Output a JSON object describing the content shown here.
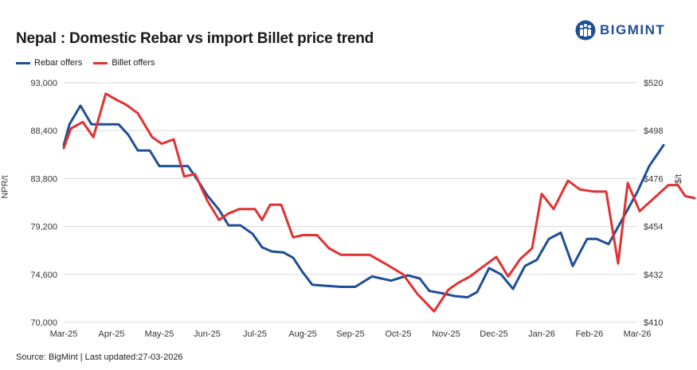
{
  "header": {
    "title": "Nepal : Domestic Rebar vs import Billet price trend"
  },
  "logo": {
    "text": "BIGMINT"
  },
  "source": "Source: BigMint | Last updated:27-03-2026",
  "colors": {
    "rebar": "#1f4e96",
    "billet": "#e03232",
    "grid": "#d9d9d9"
  },
  "chart_data": {
    "type": "line",
    "title": "Nepal : Domestic Rebar vs import Billet price trend",
    "legend_placement": "top-left",
    "grid": true,
    "ylabel": "NPR/t",
    "y2label": "$/t",
    "ylim": [
      70000,
      93000
    ],
    "y2lim": [
      410,
      520
    ],
    "yticks": [
      "93,000",
      "88,400",
      "83,800",
      "79,200",
      "74,600",
      "70,000"
    ],
    "y2ticks": [
      "$520",
      "$498",
      "$476",
      "$454",
      "$432",
      "$410"
    ],
    "xticks": [
      "Mar-25",
      "Apr-25",
      "May-25",
      "Jun-25",
      "Jul-25",
      "Aug-25",
      "Sep-25",
      "Oct-25",
      "Nov-25",
      "Dec-25",
      "Jan-26",
      "Feb-26",
      "Mar-26"
    ],
    "series": [
      {
        "name": "Rebar offers",
        "axis": "left",
        "points": [
          [
            0.0,
            87000
          ],
          [
            0.12,
            89000
          ],
          [
            0.35,
            90800
          ],
          [
            0.58,
            89000
          ],
          [
            0.85,
            89000
          ],
          [
            1.15,
            89000
          ],
          [
            1.35,
            88000
          ],
          [
            1.55,
            86500
          ],
          [
            1.8,
            86500
          ],
          [
            2.0,
            85000
          ],
          [
            2.3,
            85000
          ],
          [
            2.6,
            85000
          ],
          [
            2.85,
            83300
          ],
          [
            3.0,
            82200
          ],
          [
            3.25,
            80800
          ],
          [
            3.45,
            79300
          ],
          [
            3.7,
            79300
          ],
          [
            3.95,
            78500
          ],
          [
            4.15,
            77200
          ],
          [
            4.35,
            76800
          ],
          [
            4.6,
            76700
          ],
          [
            4.8,
            76200
          ],
          [
            5.0,
            74800
          ],
          [
            5.2,
            73600
          ],
          [
            5.5,
            73500
          ],
          [
            5.8,
            73400
          ],
          [
            6.1,
            73400
          ],
          [
            6.45,
            74400
          ],
          [
            6.85,
            74000
          ],
          [
            7.2,
            74500
          ],
          [
            7.45,
            74200
          ],
          [
            7.65,
            73000
          ],
          [
            7.9,
            72800
          ],
          [
            8.2,
            72500
          ],
          [
            8.45,
            72400
          ],
          [
            8.65,
            72900
          ],
          [
            8.9,
            75200
          ],
          [
            9.15,
            74600
          ],
          [
            9.4,
            73200
          ],
          [
            9.65,
            75400
          ],
          [
            9.9,
            76000
          ],
          [
            10.15,
            78000
          ],
          [
            10.4,
            78600
          ],
          [
            10.65,
            75400
          ],
          [
            10.95,
            78000
          ],
          [
            11.15,
            78000
          ],
          [
            11.4,
            77500
          ],
          [
            11.7,
            80000
          ],
          [
            12.0,
            82500
          ],
          [
            12.25,
            85000
          ],
          [
            12.55,
            87000
          ]
        ]
      },
      {
        "name": "Billet offers",
        "axis": "right",
        "points": [
          [
            0.0,
            490
          ],
          [
            0.15,
            499
          ],
          [
            0.4,
            502
          ],
          [
            0.62,
            495
          ],
          [
            0.88,
            515
          ],
          [
            1.12,
            512
          ],
          [
            1.3,
            510
          ],
          [
            1.55,
            506
          ],
          [
            1.85,
            495
          ],
          [
            2.05,
            492
          ],
          [
            2.3,
            494
          ],
          [
            2.52,
            477
          ],
          [
            2.75,
            478
          ],
          [
            3.0,
            466
          ],
          [
            3.25,
            457
          ],
          [
            3.45,
            460
          ],
          [
            3.68,
            462
          ],
          [
            4.0,
            462
          ],
          [
            4.15,
            457
          ],
          [
            4.32,
            464
          ],
          [
            4.55,
            464
          ],
          [
            4.8,
            449
          ],
          [
            5.0,
            450
          ],
          [
            5.3,
            450
          ],
          [
            5.55,
            444
          ],
          [
            5.8,
            441
          ],
          [
            6.1,
            441
          ],
          [
            6.4,
            441
          ],
          [
            6.8,
            436
          ],
          [
            7.1,
            432
          ],
          [
            7.4,
            423
          ],
          [
            7.75,
            415
          ],
          [
            8.05,
            425
          ],
          [
            8.25,
            428
          ],
          [
            8.5,
            431
          ],
          [
            8.8,
            436
          ],
          [
            9.05,
            440
          ],
          [
            9.3,
            431
          ],
          [
            9.55,
            439
          ],
          [
            9.8,
            444
          ],
          [
            10.0,
            469
          ],
          [
            10.25,
            462
          ],
          [
            10.55,
            475
          ],
          [
            10.8,
            471
          ],
          [
            11.1,
            470
          ],
          [
            11.35,
            470
          ],
          [
            11.6,
            437
          ],
          [
            11.8,
            474
          ],
          [
            12.05,
            461
          ],
          [
            12.4,
            468
          ],
          [
            12.65,
            473
          ],
          [
            12.85,
            473
          ],
          [
            13.0,
            468
          ],
          [
            13.2,
            467
          ]
        ]
      }
    ]
  }
}
